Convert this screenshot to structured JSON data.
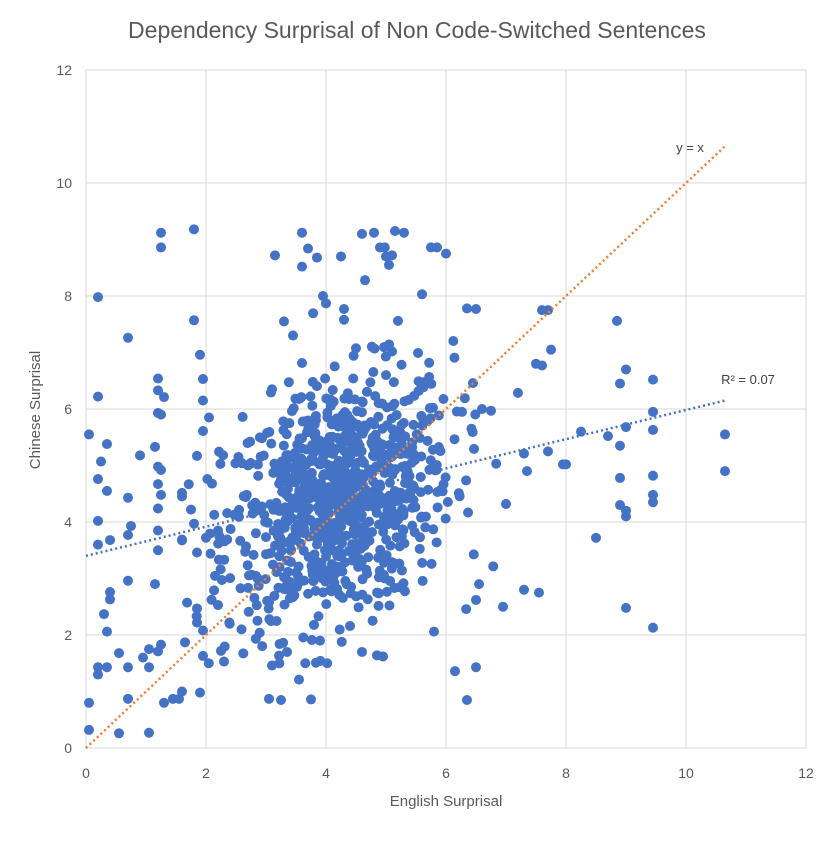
{
  "chart_data": {
    "type": "scatter",
    "title": "Dependency Surprisal of Non Code-Switched Sentences",
    "xlabel": "English Surprisal",
    "ylabel": "Chinese Surprisal",
    "xlim": [
      0,
      12
    ],
    "ylim": [
      0,
      12
    ],
    "xticks": [
      0,
      2,
      4,
      6,
      8,
      10,
      12
    ],
    "yticks": [
      0,
      2,
      4,
      6,
      8,
      10,
      12
    ],
    "grid": true,
    "colors": {
      "points": "#4472c4",
      "identity_line": "#ed7d31",
      "trend_line": "#4472c4"
    },
    "annotations": {
      "identity_label": "y = x",
      "trend_label": "R² = 0.07"
    },
    "identity_line": {
      "from": [
        0,
        0
      ],
      "to": [
        10.65,
        10.65
      ]
    },
    "trend_line": {
      "from": [
        0,
        3.4
      ],
      "to": [
        10.65,
        6.15
      ]
    },
    "cluster": {
      "center": [
        4.2,
        4.4
      ],
      "count": 900,
      "sd_x": 0.95,
      "sd_y": 1.05
    },
    "points": [
      [
        0.05,
        5.55
      ],
      [
        0.2,
        6.22
      ],
      [
        0.2,
        7.98
      ],
      [
        0.25,
        5.07
      ],
      [
        0.2,
        4.76
      ],
      [
        0.2,
        4.02
      ],
      [
        0.2,
        3.6
      ],
      [
        0.35,
        4.55
      ],
      [
        0.35,
        5.38
      ],
      [
        0.4,
        3.68
      ],
      [
        0.4,
        2.76
      ],
      [
        0.4,
        2.63
      ],
      [
        0.3,
        2.37
      ],
      [
        0.35,
        2.06
      ],
      [
        0.2,
        1.43
      ],
      [
        0.2,
        1.3
      ],
      [
        0.35,
        1.43
      ],
      [
        0.05,
        0.8
      ],
      [
        0.05,
        0.32
      ],
      [
        0.55,
        1.68
      ],
      [
        0.55,
        0.26
      ],
      [
        0.7,
        1.43
      ],
      [
        0.7,
        0.87
      ],
      [
        0.7,
        2.96
      ],
      [
        0.7,
        3.77
      ],
      [
        0.75,
        3.93
      ],
      [
        0.7,
        4.43
      ],
      [
        0.7,
        7.26
      ],
      [
        0.9,
        5.18
      ],
      [
        0.95,
        1.6
      ],
      [
        1.05,
        1.75
      ],
      [
        1.05,
        1.43
      ],
      [
        1.05,
        0.27
      ],
      [
        1.25,
        9.12
      ],
      [
        1.25,
        8.86
      ],
      [
        1.2,
        6.54
      ],
      [
        1.2,
        6.33
      ],
      [
        1.3,
        6.21
      ],
      [
        1.2,
        5.93
      ],
      [
        1.25,
        5.9
      ],
      [
        1.15,
        5.33
      ],
      [
        1.2,
        4.98
      ],
      [
        1.25,
        4.92
      ],
      [
        1.2,
        4.67
      ],
      [
        1.25,
        4.48
      ],
      [
        1.2,
        4.24
      ],
      [
        1.2,
        3.85
      ],
      [
        1.2,
        3.5
      ],
      [
        1.15,
        2.9
      ],
      [
        1.25,
        1.83
      ],
      [
        1.2,
        1.71
      ],
      [
        1.3,
        0.8
      ],
      [
        1.45,
        0.87
      ],
      [
        1.55,
        0.87
      ],
      [
        1.6,
        1.0
      ],
      [
        1.65,
        1.87
      ],
      [
        1.8,
        9.18
      ],
      [
        1.8,
        7.57
      ],
      [
        1.9,
        6.96
      ],
      [
        1.95,
        6.53
      ],
      [
        1.95,
        6.15
      ],
      [
        1.95,
        5.61
      ],
      [
        1.85,
        5.17
      ],
      [
        1.75,
        4.22
      ],
      [
        1.8,
        3.97
      ],
      [
        1.85,
        3.46
      ],
      [
        1.85,
        2.47
      ],
      [
        1.85,
        2.22
      ],
      [
        1.9,
        0.98
      ],
      [
        1.95,
        1.63
      ],
      [
        1.95,
        2.08
      ],
      [
        2.05,
        5.85
      ],
      [
        2.1,
        4.68
      ],
      [
        2.2,
        3.85
      ],
      [
        2.2,
        2.53
      ],
      [
        2.25,
        1.72
      ],
      [
        2.3,
        1.53
      ],
      [
        3.15,
        8.72
      ],
      [
        3.1,
        6.35
      ],
      [
        3.05,
        0.87
      ],
      [
        3.1,
        1.46
      ],
      [
        3.25,
        0.85
      ],
      [
        3.3,
        7.55
      ],
      [
        3.35,
        1.7
      ],
      [
        3.45,
        7.3
      ],
      [
        3.55,
        1.21
      ],
      [
        3.6,
        9.12
      ],
      [
        3.6,
        8.52
      ],
      [
        3.7,
        8.84
      ],
      [
        3.75,
        0.86
      ],
      [
        3.8,
        2.18
      ],
      [
        3.85,
        8.68
      ],
      [
        3.9,
        1.9
      ],
      [
        3.95,
        8.0
      ],
      [
        4.0,
        7.87
      ],
      [
        4.25,
        8.7
      ],
      [
        4.3,
        7.77
      ],
      [
        4.3,
        7.58
      ],
      [
        4.4,
        2.16
      ],
      [
        4.6,
        1.7
      ],
      [
        4.6,
        9.1
      ],
      [
        4.65,
        8.28
      ],
      [
        4.8,
        9.12
      ],
      [
        4.85,
        1.64
      ],
      [
        4.9,
        8.86
      ],
      [
        4.95,
        1.62
      ],
      [
        4.98,
        8.86
      ],
      [
        5.0,
        8.7
      ],
      [
        5.05,
        8.55
      ],
      [
        5.1,
        8.72
      ],
      [
        5.15,
        9.15
      ],
      [
        5.3,
        9.12
      ],
      [
        5.2,
        7.56
      ],
      [
        5.6,
        8.03
      ],
      [
        5.75,
        8.86
      ],
      [
        5.85,
        8.86
      ],
      [
        6.0,
        8.75
      ],
      [
        5.8,
        2.06
      ],
      [
        6.15,
        1.36
      ],
      [
        6.35,
        0.85
      ],
      [
        6.5,
        1.43
      ],
      [
        6.5,
        2.62
      ],
      [
        6.55,
        2.9
      ],
      [
        6.35,
        7.78
      ],
      [
        6.5,
        7.77
      ],
      [
        6.45,
        6.46
      ],
      [
        6.6,
        6.0
      ],
      [
        6.75,
        5.97
      ],
      [
        7.0,
        4.32
      ],
      [
        6.95,
        2.5
      ],
      [
        7.3,
        5.21
      ],
      [
        7.35,
        4.9
      ],
      [
        7.3,
        2.8
      ],
      [
        7.5,
        6.8
      ],
      [
        7.6,
        7.75
      ],
      [
        7.6,
        6.77
      ],
      [
        7.7,
        7.75
      ],
      [
        7.7,
        5.25
      ],
      [
        7.75,
        7.05
      ],
      [
        7.55,
        2.75
      ],
      [
        7.95,
        5.02
      ],
      [
        8.0,
        5.02
      ],
      [
        8.25,
        5.6
      ],
      [
        8.5,
        3.72
      ],
      [
        8.7,
        5.52
      ],
      [
        8.85,
        7.56
      ],
      [
        8.9,
        6.45
      ],
      [
        8.9,
        5.35
      ],
      [
        8.9,
        4.78
      ],
      [
        8.9,
        4.3
      ],
      [
        9.0,
        6.7
      ],
      [
        9.0,
        5.68
      ],
      [
        9.0,
        4.2
      ],
      [
        9.0,
        4.1
      ],
      [
        9.0,
        2.48
      ],
      [
        9.45,
        6.52
      ],
      [
        9.45,
        5.95
      ],
      [
        9.45,
        5.63
      ],
      [
        9.45,
        4.82
      ],
      [
        9.45,
        4.48
      ],
      [
        9.45,
        4.35
      ],
      [
        9.45,
        2.13
      ],
      [
        10.65,
        5.55
      ],
      [
        10.65,
        4.9
      ]
    ]
  }
}
